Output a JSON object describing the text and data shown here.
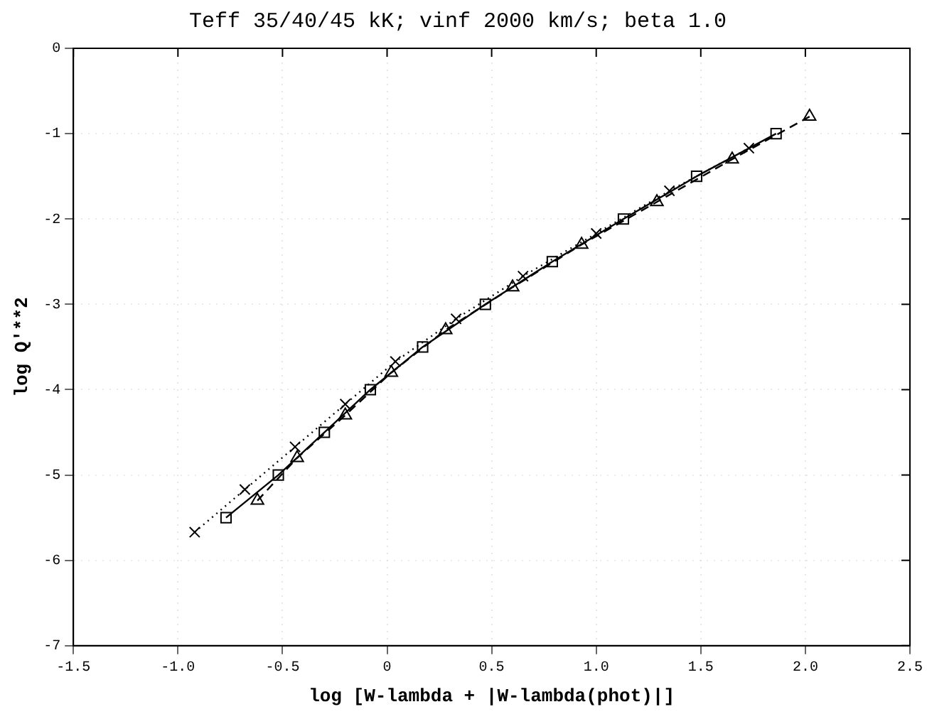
{
  "chart_data": {
    "type": "line",
    "title": "Teff 35/40/45 kK; vinf 2000 km/s; beta 1.0",
    "xlabel": "log [W-lambda + |W-lambda(phot)|]",
    "ylabel": "log Q'**2",
    "xlim": [
      -1.5,
      2.5
    ],
    "ylim": [
      -7,
      0
    ],
    "xticks": [
      {
        "value": -1.5,
        "label": "-1.5"
      },
      {
        "value": -1,
        "label": "-1.0"
      },
      {
        "value": -0.5,
        "label": "-0.5"
      },
      0,
      0.5,
      {
        "value": 1,
        "label": "1.0"
      },
      1.5,
      {
        "value": 2,
        "label": "2.0"
      },
      2.5
    ],
    "yticks": [
      -7,
      -6,
      -5,
      -4,
      -3,
      -2,
      -1,
      0
    ],
    "grid": true,
    "legend": false,
    "series": [
      {
        "color": "#000000",
        "marker": "square",
        "line_style": "solid",
        "x": [
          -0.77,
          -0.52,
          -0.3,
          -0.08,
          0.17,
          0.47,
          0.79,
          1.13,
          1.48,
          1.86
        ],
        "values": [
          -5.5,
          -5,
          -4.5,
          -4,
          -3.5,
          -3,
          -2.5,
          -2,
          -1.5,
          -1
        ]
      },
      {
        "color": "#000000",
        "marker": "triangle",
        "line_style": "dashed",
        "x": [
          -0.62,
          -0.43,
          -0.2,
          0.02,
          0.28,
          0.6,
          0.93,
          1.29,
          1.65,
          2.02
        ],
        "values": [
          -5.3,
          -4.8,
          -4.3,
          -3.8,
          -3.3,
          -2.8,
          -2.3,
          -1.8,
          -1.3,
          -0.8
        ]
      },
      {
        "color": "#000000",
        "marker": "cross",
        "line_style": "dotted",
        "x": [
          -0.92,
          -0.68,
          -0.44,
          -0.2,
          0.04,
          0.33,
          0.65,
          1.0,
          1.35,
          1.73
        ],
        "values": [
          -5.67,
          -5.17,
          -4.67,
          -4.17,
          -3.67,
          -3.17,
          -2.67,
          -2.17,
          -1.67,
          -1.17
        ]
      }
    ]
  }
}
